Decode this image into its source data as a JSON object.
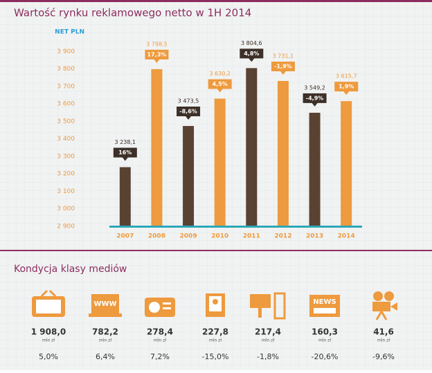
{
  "chart_data": {
    "type": "bar",
    "title": "Wartość rynku reklamowego netto w 1H 2014",
    "y_label": "NET PLN",
    "categories": [
      "2007",
      "2008",
      "2009",
      "2010",
      "2011",
      "2012",
      "2013",
      "2014"
    ],
    "values": [
      3238.1,
      3798.5,
      3473.5,
      3630.2,
      3804.6,
      3731.1,
      3549.2,
      3615.7
    ],
    "value_labels": [
      "3 238,1",
      "3 798,5",
      "3 473,5",
      "3 630,2",
      "3 804,6",
      "3 731,1",
      "3 549,2",
      "3 615,7"
    ],
    "change_labels": [
      "16%",
      "17,3%",
      "-8,6%",
      "4,5%",
      "4,8%",
      "-1,9%",
      "-4,9%",
      "1,9%"
    ],
    "colors": [
      "#5a4233",
      "#ee9a3e",
      "#5a4233",
      "#ee9a3e",
      "#5a4233",
      "#ee9a3e",
      "#5a4233",
      "#ee9a3e"
    ],
    "ylim": [
      2900,
      4000
    ],
    "yticks": [
      {
        "value": 2900,
        "label": "2 900"
      },
      {
        "value": 3000,
        "label": "3 000"
      },
      {
        "value": 3100,
        "label": "3 100"
      },
      {
        "value": 3200,
        "label": "3 200"
      },
      {
        "value": 3300,
        "label": "3 300"
      },
      {
        "value": 3400,
        "label": "3 400"
      },
      {
        "value": 3500,
        "label": "3 500"
      },
      {
        "value": 3600,
        "label": "3 600"
      },
      {
        "value": 3700,
        "label": "3 700"
      },
      {
        "value": 3800,
        "label": "3 800"
      },
      {
        "value": 3900,
        "label": "3 900"
      }
    ]
  },
  "media_section": {
    "title": "Kondycja klasy mediów",
    "items": [
      {
        "icon": "tv",
        "value": "1 908,0",
        "unit": "mln zł",
        "change": "5,0%"
      },
      {
        "icon": "www",
        "label": "WWW",
        "value": "782,2",
        "unit": "mln zł",
        "change": "6,4%"
      },
      {
        "icon": "radio",
        "value": "278,4",
        "unit": "mln zł",
        "change": "7,2%"
      },
      {
        "icon": "magazine",
        "value": "227,8",
        "unit": "mln zł",
        "change": "-15,0%"
      },
      {
        "icon": "outdoor",
        "value": "217,4",
        "unit": "mln zł",
        "change": "-1,8%"
      },
      {
        "icon": "newspaper",
        "label": "NEWS",
        "value": "160,3",
        "unit": "mln zł",
        "change": "-20,6%"
      },
      {
        "icon": "cinema",
        "value": "41,6",
        "unit": "mln zł",
        "change": "-9,6%"
      }
    ]
  }
}
